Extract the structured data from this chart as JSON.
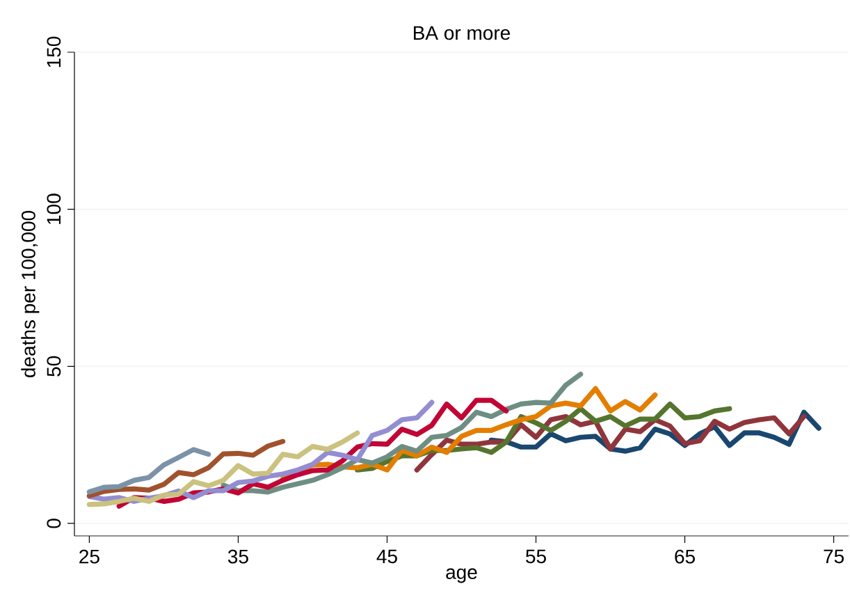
{
  "chart_data": {
    "type": "line",
    "title": "BA or more",
    "xlabel": "age",
    "ylabel": "deaths per 100,000",
    "xlim": [
      24,
      76
    ],
    "ylim": [
      -4,
      150
    ],
    "xticks": [
      25,
      35,
      45,
      55,
      65,
      75
    ],
    "yticks": [
      0,
      50,
      100,
      150
    ],
    "grid": "y",
    "line_style": "solid",
    "marker": "none",
    "series": [
      {
        "color": "#1a476f",
        "x": [
          52,
          53,
          54,
          55,
          56,
          57,
          58,
          59,
          60,
          61,
          62,
          63,
          64,
          65,
          66,
          67,
          68,
          69,
          70,
          71,
          72,
          73,
          74
        ],
        "values": [
          26.5,
          26,
          24.3,
          24.3,
          28.5,
          26.3,
          27.4,
          27.7,
          23.7,
          23,
          24.1,
          30,
          28.5,
          24.8,
          28.5,
          30.8,
          24.8,
          28.8,
          28.8,
          27.4,
          25.2,
          35.4,
          30.3
        ]
      },
      {
        "color": "#90353b",
        "x": [
          47,
          48,
          49,
          50,
          51,
          52,
          53,
          54,
          55,
          56,
          57,
          58,
          59,
          60,
          61,
          62,
          63,
          64,
          65,
          66,
          67,
          68,
          69,
          70,
          71,
          72,
          73
        ],
        "values": [
          17,
          21.9,
          26.5,
          25.2,
          25.2,
          25.9,
          25.9,
          31.4,
          27.4,
          33,
          34,
          31.4,
          32.5,
          23.7,
          30,
          29.2,
          33,
          31,
          25.4,
          26.3,
          32.5,
          30,
          32.1,
          33,
          33.6,
          28.5,
          34
        ]
      },
      {
        "color": "#55752f",
        "x": [
          43,
          44,
          45,
          46,
          47,
          48,
          49,
          50,
          51,
          52,
          53,
          54,
          55,
          56,
          57,
          58,
          59,
          60,
          61,
          62,
          63,
          64,
          65,
          66,
          67,
          68
        ],
        "values": [
          17,
          17.5,
          19.7,
          21.5,
          21.5,
          23.2,
          23.2,
          23.7,
          24.1,
          22.6,
          25.9,
          34,
          32,
          29.6,
          32.5,
          36.5,
          32.5,
          34,
          31,
          33.2,
          33.2,
          38,
          33.6,
          34,
          35.8,
          36.5
        ]
      },
      {
        "color": "#e37e00",
        "x": [
          38,
          39,
          40,
          41,
          42,
          43,
          44,
          45,
          46,
          47,
          48,
          49,
          50,
          51,
          52,
          53,
          54,
          55,
          56,
          57,
          58,
          59,
          60,
          61,
          62,
          63
        ],
        "values": [
          14.2,
          15.9,
          18.6,
          18.8,
          18,
          17.7,
          18.8,
          17,
          23.2,
          21.5,
          24.3,
          22.6,
          27.7,
          29.6,
          29.6,
          31.4,
          33,
          34,
          37.4,
          38.3,
          37.4,
          42.9,
          35.8,
          38.8,
          36.1,
          40.9
        ]
      },
      {
        "color": "#6e8e84",
        "x": [
          34,
          35,
          36,
          37,
          38,
          39,
          40,
          41,
          42,
          43,
          44,
          45,
          46,
          47,
          48,
          49,
          50,
          51,
          52,
          53,
          54,
          55,
          56,
          57,
          58
        ],
        "values": [
          12.2,
          10.4,
          10.4,
          10,
          11.5,
          12.6,
          13.7,
          15.5,
          17.7,
          20.3,
          19.2,
          21.2,
          24.5,
          23,
          27.4,
          28,
          30.5,
          35.4,
          34,
          36.3,
          38,
          38.5,
          38.3,
          44,
          47.5
        ]
      },
      {
        "color": "#c10534",
        "x": [
          27,
          28,
          29,
          30,
          31,
          32,
          33,
          34,
          35,
          36,
          37,
          38,
          39,
          40,
          41,
          42,
          43,
          44,
          45,
          46,
          47,
          48,
          49,
          50,
          51,
          52,
          53
        ],
        "values": [
          5.5,
          8.2,
          8,
          7,
          7.7,
          9.7,
          10,
          11,
          9.7,
          12.6,
          11.5,
          13.7,
          15.5,
          16.8,
          17,
          19.9,
          24.3,
          25.4,
          25.2,
          30,
          28.3,
          31.2,
          38,
          33.6,
          39.2,
          39.2,
          35.8
        ]
      },
      {
        "color": "#938dd2",
        "x": [
          25,
          26,
          27,
          28,
          29,
          30,
          31,
          32,
          33,
          34,
          35,
          36,
          37,
          38,
          39,
          40,
          41,
          42,
          43,
          44,
          45,
          46,
          47,
          48
        ],
        "values": [
          8.6,
          7.7,
          8.2,
          7,
          8,
          8.8,
          10.3,
          8.2,
          10.4,
          10.4,
          13,
          13.5,
          15,
          15.7,
          17,
          18.8,
          22.6,
          21.7,
          20.3,
          28,
          29.6,
          33,
          33.6,
          38.5
        ]
      },
      {
        "color": "#cac27e",
        "x": [
          25,
          26,
          27,
          28,
          29,
          30,
          31,
          32,
          33,
          34,
          35,
          36,
          37,
          38,
          39,
          40,
          41,
          42,
          43
        ],
        "values": [
          6,
          6.2,
          7,
          8,
          7,
          9,
          9.3,
          13.3,
          12,
          13.7,
          18.4,
          15.7,
          16,
          22,
          21.2,
          24.5,
          23.6,
          25.9,
          28.8
        ]
      },
      {
        "color": "#a0522d",
        "x": [
          25,
          26,
          27,
          28,
          29,
          30,
          31,
          32,
          33,
          34,
          35,
          36,
          37,
          38
        ],
        "values": [
          8.8,
          10.2,
          10.8,
          11,
          10.6,
          12.4,
          16.2,
          15.5,
          17.7,
          22.1,
          22.3,
          21.7,
          24.6,
          26.1
        ]
      },
      {
        "color": "#7b92a8",
        "x": [
          25,
          26,
          27,
          28,
          29,
          30,
          31,
          32,
          33
        ],
        "values": [
          10,
          11.5,
          11.7,
          13.7,
          14.6,
          18.6,
          21,
          23.5,
          22
        ]
      }
    ]
  }
}
